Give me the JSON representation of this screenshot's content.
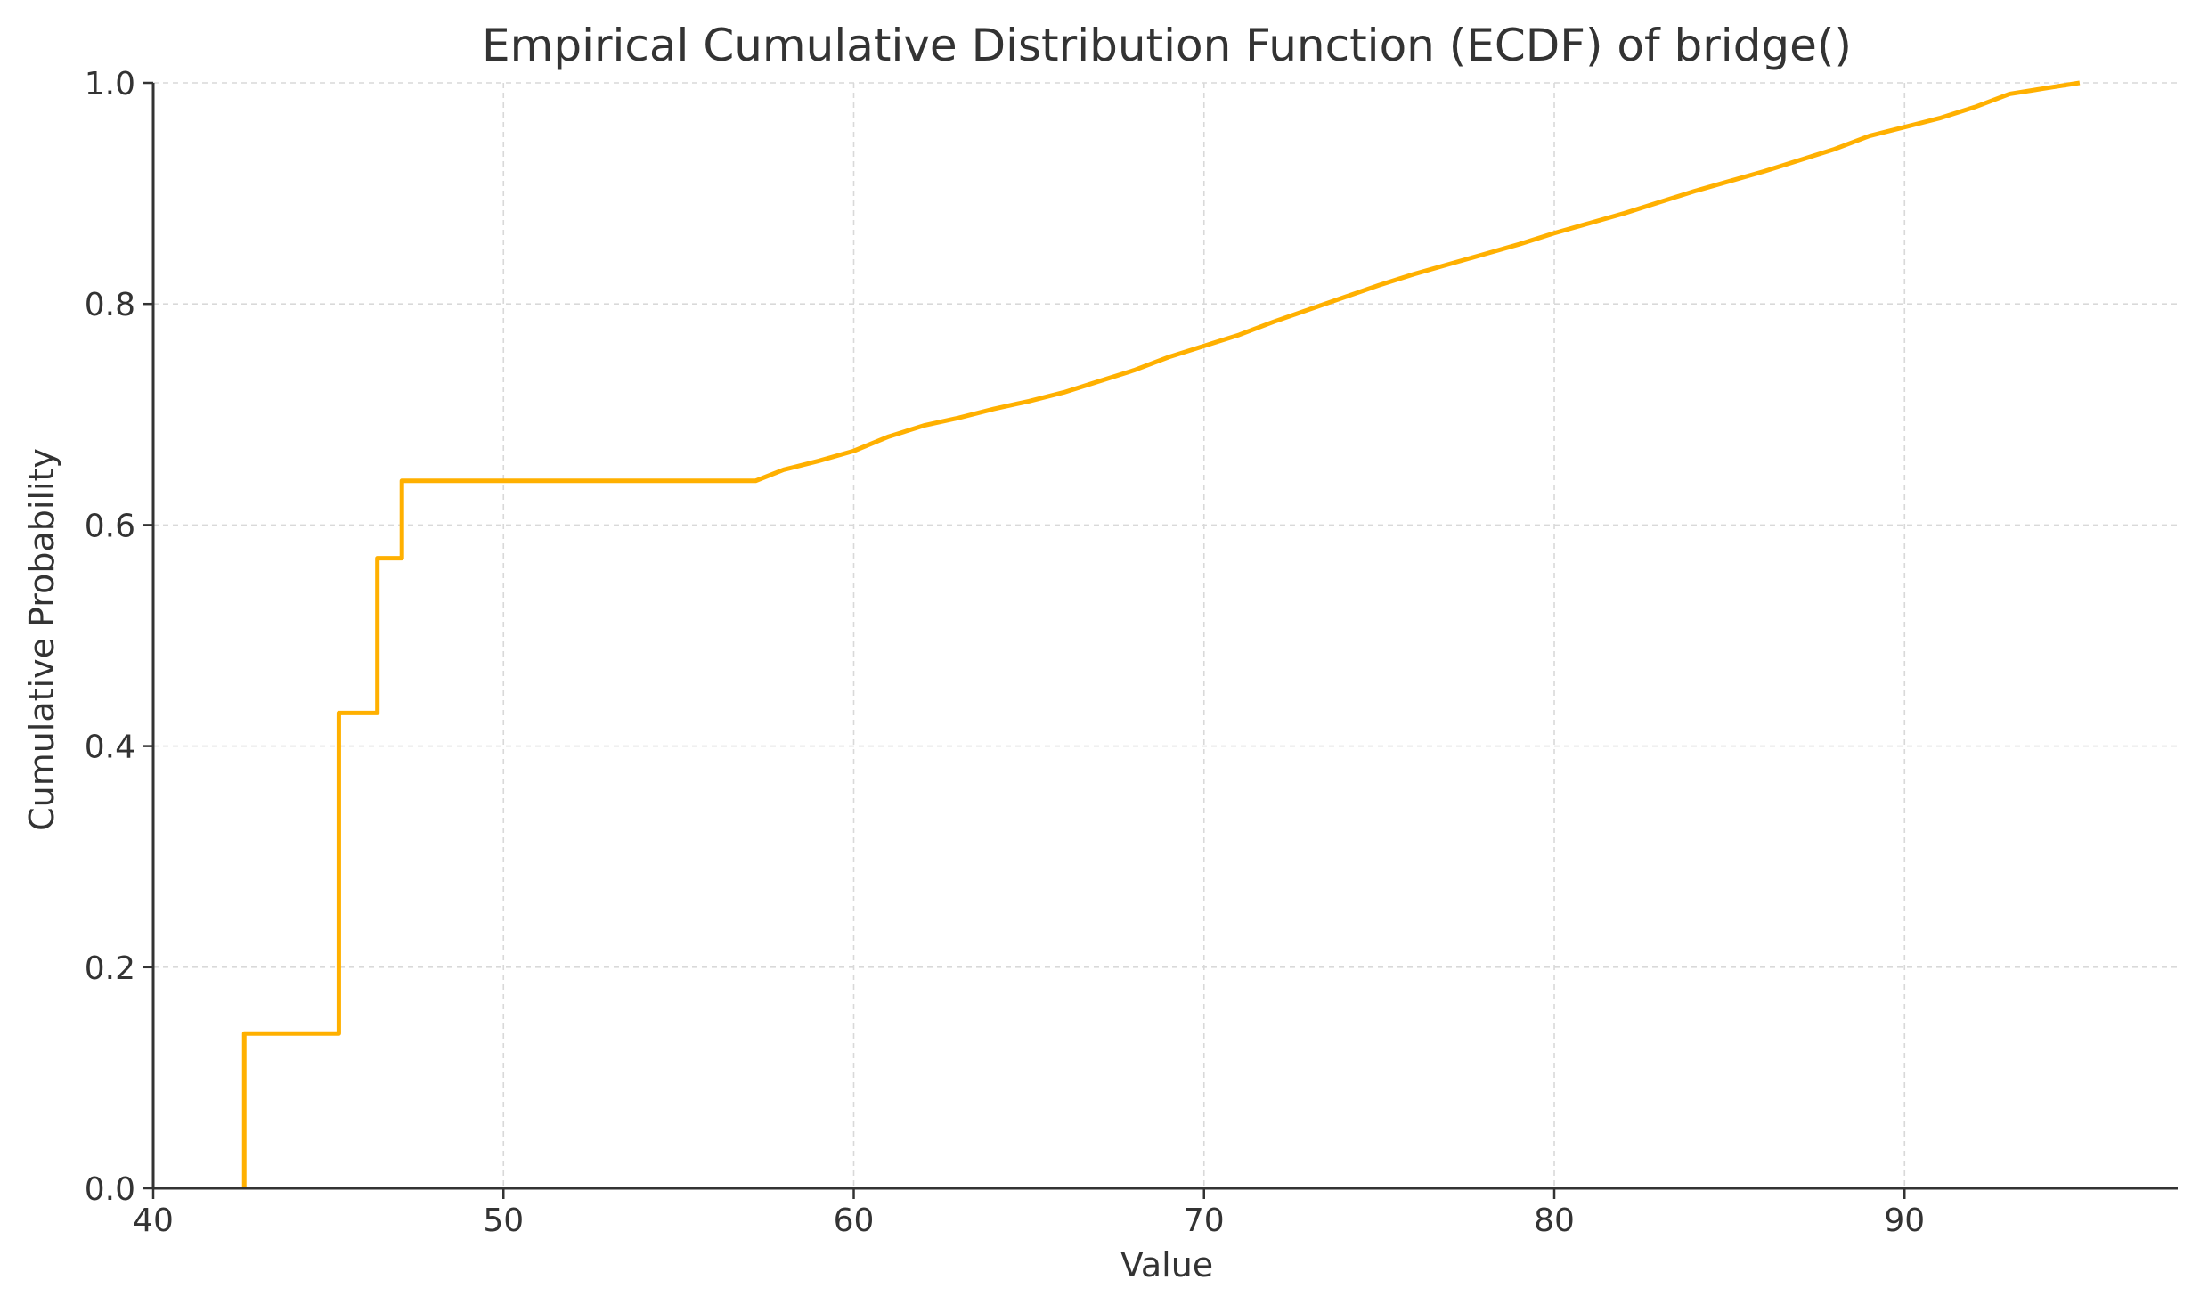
{
  "chart_data": {
    "type": "line",
    "drawstyle": "steps-post",
    "title": "Empirical Cumulative Distribution Function (ECDF) of bridge()",
    "xlabel": "Value",
    "ylabel": "Cumulative Probability",
    "xlim": [
      40,
      97.8
    ],
    "ylim": [
      0,
      1.0
    ],
    "xticks": [
      40,
      50,
      60,
      70,
      80,
      90
    ],
    "yticks": [
      0.0,
      0.2,
      0.4,
      0.6,
      0.8,
      1.0
    ],
    "xtick_labels": [
      "40",
      "50",
      "60",
      "70",
      "80",
      "90"
    ],
    "ytick_labels": [
      "0.0",
      "0.2",
      "0.4",
      "0.6",
      "0.8",
      "1.0"
    ],
    "grid": true,
    "line_color": "#FFB000",
    "series": [
      {
        "x": [
          42.6,
          42.6,
          45.3,
          45.3,
          46.4,
          46.4,
          47.1,
          47.1,
          57.2,
          58,
          59,
          60,
          61,
          62,
          63,
          64,
          65,
          66,
          67,
          68,
          69,
          70,
          71,
          72,
          73,
          74,
          75,
          76,
          77,
          78,
          79,
          80,
          81,
          82,
          83,
          84,
          85,
          86,
          87,
          88,
          89,
          90,
          91,
          92,
          93,
          94,
          95.0
        ],
        "y": [
          0.0,
          0.14,
          0.14,
          0.43,
          0.43,
          0.57,
          0.57,
          0.64,
          0.64,
          0.65,
          0.658,
          0.667,
          0.68,
          0.69,
          0.697,
          0.705,
          0.712,
          0.72,
          0.73,
          0.74,
          0.752,
          0.762,
          0.772,
          0.784,
          0.795,
          0.806,
          0.817,
          0.827,
          0.836,
          0.845,
          0.854,
          0.864,
          0.873,
          0.882,
          0.892,
          0.902,
          0.911,
          0.92,
          0.93,
          0.94,
          0.952,
          0.96,
          0.968,
          0.978,
          0.99,
          0.995,
          1.0
        ]
      }
    ]
  }
}
